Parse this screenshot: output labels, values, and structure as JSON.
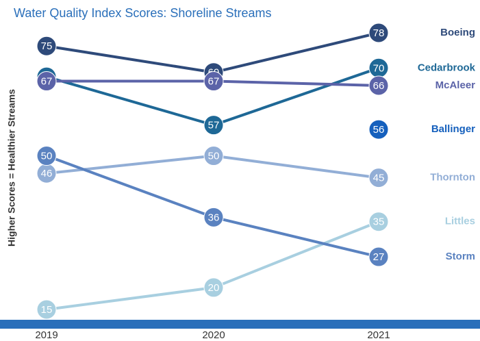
{
  "chart_data": {
    "type": "slope",
    "title": "Water Quality Index Scores: Shoreline Streams",
    "y_label": "Higher Scores = Healthier Streams",
    "categories": [
      "2019",
      "2020",
      "2021"
    ],
    "ylim": [
      15,
      78
    ],
    "series": [
      {
        "name": "Boeing",
        "color": "#2e4a7a",
        "values": [
          75,
          69,
          78
        ]
      },
      {
        "name": "Cedarbrook",
        "color": "#1e6896",
        "values": [
          68,
          57,
          70
        ]
      },
      {
        "name": "McAleer",
        "color": "#5b63a8",
        "values": [
          67,
          67,
          66
        ]
      },
      {
        "name": "Ballinger",
        "color": "#1560bd",
        "values": [
          null,
          null,
          56
        ]
      },
      {
        "name": "Thornton",
        "color": "#92aed6",
        "values": [
          46,
          50,
          45
        ]
      },
      {
        "name": "Littles",
        "color": "#a8cfe0",
        "values": [
          15,
          20,
          35
        ]
      },
      {
        "name": "Storm",
        "color": "#5a82c0",
        "values": [
          50,
          36,
          27
        ]
      }
    ]
  }
}
